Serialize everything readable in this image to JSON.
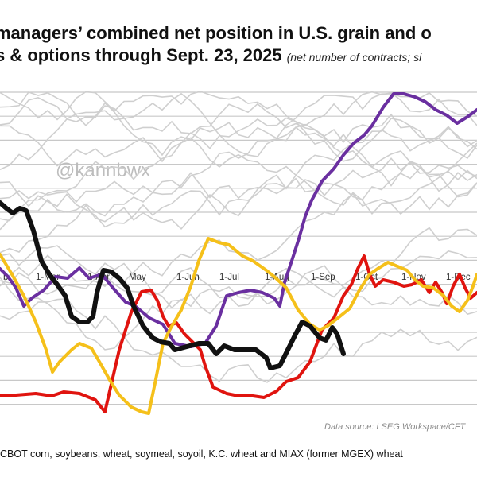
{
  "title_line1": "managers’ combined net position in U.S. grain and o",
  "title_line2": "s & options through Sept. 23, 2025",
  "title_note": "(net number of contracts; si",
  "watermark": "@kannbwx",
  "source": "Data source: LSEG Workspace/CFT",
  "footer": "CBOT corn, soybeans, wheat, soymeal, soyoil, K.C. wheat and MIAX (former MGEX) wheat",
  "colors": {
    "purple": "#6a2fa0",
    "red": "#e0140f",
    "gold": "#f5c01a",
    "black": "#111111",
    "history": "#cfcfcf",
    "grid": "#c8c8c8"
  },
  "chart_data": {
    "type": "line",
    "x_ticks": [
      "b",
      "1-Mar",
      "1-Apr",
      "May",
      "1-Jun",
      "1-Jul",
      "1-Aug",
      "1-Sep",
      "1-Oct",
      "1-Nov",
      "1-Dec"
    ],
    "series": [
      {
        "color": "purple",
        "points": [
          [
            0,
            338
          ],
          [
            10,
            348
          ],
          [
            20,
            362
          ],
          [
            30,
            385
          ],
          [
            40,
            375
          ],
          [
            55,
            365
          ],
          [
            70,
            348
          ],
          [
            85,
            350
          ],
          [
            100,
            337
          ],
          [
            112,
            350
          ],
          [
            128,
            345
          ],
          [
            142,
            362
          ],
          [
            158,
            380
          ],
          [
            170,
            385
          ],
          [
            188,
            400
          ],
          [
            205,
            408
          ],
          [
            220,
            432
          ],
          [
            240,
            436
          ],
          [
            258,
            432
          ],
          [
            272,
            410
          ],
          [
            285,
            372
          ],
          [
            300,
            368
          ],
          [
            315,
            365
          ],
          [
            330,
            368
          ],
          [
            345,
            375
          ],
          [
            352,
            385
          ],
          [
            358,
            355
          ],
          [
            368,
            325
          ],
          [
            376,
            300
          ],
          [
            384,
            272
          ],
          [
            392,
            252
          ],
          [
            405,
            228
          ],
          [
            420,
            212
          ],
          [
            432,
            195
          ],
          [
            445,
            180
          ],
          [
            458,
            170
          ],
          [
            468,
            158
          ],
          [
            482,
            135
          ],
          [
            495,
            118
          ],
          [
            508,
            118
          ],
          [
            522,
            122
          ],
          [
            535,
            128
          ],
          [
            548,
            138
          ],
          [
            562,
            145
          ],
          [
            575,
            155
          ],
          [
            588,
            147
          ],
          [
            600,
            138
          ]
        ]
      },
      {
        "color": "red",
        "points": [
          [
            0,
            497
          ],
          [
            20,
            497
          ],
          [
            45,
            495
          ],
          [
            65,
            498
          ],
          [
            80,
            493
          ],
          [
            100,
            495
          ],
          [
            120,
            503
          ],
          [
            132,
            518
          ],
          [
            150,
            440
          ],
          [
            165,
            393
          ],
          [
            178,
            367
          ],
          [
            190,
            365
          ],
          [
            198,
            378
          ],
          [
            205,
            398
          ],
          [
            212,
            410
          ],
          [
            222,
            406
          ],
          [
            232,
            420
          ],
          [
            240,
            428
          ],
          [
            252,
            440
          ],
          [
            258,
            460
          ],
          [
            268,
            487
          ],
          [
            285,
            495
          ],
          [
            300,
            498
          ],
          [
            318,
            498
          ],
          [
            332,
            500
          ],
          [
            348,
            492
          ],
          [
            360,
            480
          ],
          [
            375,
            475
          ],
          [
            390,
            455
          ],
          [
            405,
            415
          ],
          [
            420,
            400
          ],
          [
            432,
            372
          ],
          [
            442,
            358
          ],
          [
            450,
            338
          ],
          [
            458,
            322
          ],
          [
            465,
            345
          ],
          [
            472,
            360
          ],
          [
            482,
            352
          ],
          [
            495,
            355
          ],
          [
            508,
            360
          ],
          [
            518,
            358
          ],
          [
            530,
            352
          ],
          [
            540,
            368
          ],
          [
            548,
            355
          ],
          [
            556,
            368
          ],
          [
            562,
            382
          ],
          [
            570,
            360
          ],
          [
            578,
            345
          ],
          [
            585,
            362
          ],
          [
            592,
            375
          ],
          [
            600,
            368
          ]
        ]
      },
      {
        "color": "gold",
        "points": [
          [
            0,
            320
          ],
          [
            15,
            345
          ],
          [
            30,
            372
          ],
          [
            45,
            405
          ],
          [
            58,
            440
          ],
          [
            66,
            468
          ],
          [
            75,
            455
          ],
          [
            90,
            440
          ],
          [
            100,
            432
          ],
          [
            115,
            438
          ],
          [
            125,
            455
          ],
          [
            138,
            478
          ],
          [
            150,
            497
          ],
          [
            165,
            512
          ],
          [
            178,
            518
          ],
          [
            187,
            520
          ],
          [
            195,
            482
          ],
          [
            205,
            432
          ],
          [
            215,
            412
          ],
          [
            228,
            390
          ],
          [
            240,
            360
          ],
          [
            250,
            328
          ],
          [
            262,
            300
          ],
          [
            275,
            305
          ],
          [
            288,
            308
          ],
          [
            305,
            322
          ],
          [
            318,
            328
          ],
          [
            335,
            340
          ],
          [
            345,
            348
          ],
          [
            360,
            362
          ],
          [
            375,
            390
          ],
          [
            390,
            408
          ],
          [
            402,
            415
          ],
          [
            412,
            410
          ],
          [
            425,
            400
          ],
          [
            440,
            388
          ],
          [
            452,
            365
          ],
          [
            465,
            345
          ],
          [
            475,
            338
          ],
          [
            488,
            330
          ],
          [
            500,
            335
          ],
          [
            512,
            340
          ],
          [
            522,
            352
          ],
          [
            532,
            360
          ],
          [
            545,
            362
          ],
          [
            558,
            372
          ],
          [
            568,
            385
          ],
          [
            578,
            392
          ],
          [
            588,
            378
          ],
          [
            595,
            360
          ],
          [
            600,
            345
          ]
        ]
      },
      {
        "color": "black",
        "points": [
          [
            0,
            255
          ],
          [
            8,
            262
          ],
          [
            16,
            268
          ],
          [
            25,
            262
          ],
          [
            33,
            265
          ],
          [
            42,
            290
          ],
          [
            52,
            328
          ],
          [
            62,
            345
          ],
          [
            72,
            358
          ],
          [
            82,
            372
          ],
          [
            90,
            398
          ],
          [
            100,
            405
          ],
          [
            110,
            405
          ],
          [
            117,
            398
          ],
          [
            122,
            368
          ],
          [
            130,
            340
          ],
          [
            140,
            342
          ],
          [
            150,
            350
          ],
          [
            160,
            362
          ],
          [
            168,
            385
          ],
          [
            180,
            410
          ],
          [
            192,
            425
          ],
          [
            202,
            430
          ],
          [
            213,
            432
          ],
          [
            220,
            440
          ],
          [
            235,
            436
          ],
          [
            250,
            432
          ],
          [
            262,
            432
          ],
          [
            272,
            445
          ],
          [
            282,
            435
          ],
          [
            295,
            440
          ],
          [
            310,
            440
          ],
          [
            322,
            440
          ],
          [
            335,
            450
          ],
          [
            340,
            463
          ],
          [
            352,
            460
          ],
          [
            362,
            440
          ],
          [
            372,
            420
          ],
          [
            380,
            405
          ],
          [
            390,
            410
          ],
          [
            402,
            425
          ],
          [
            410,
            428
          ],
          [
            418,
            412
          ],
          [
            424,
            420
          ],
          [
            432,
            445
          ]
        ]
      }
    ]
  }
}
